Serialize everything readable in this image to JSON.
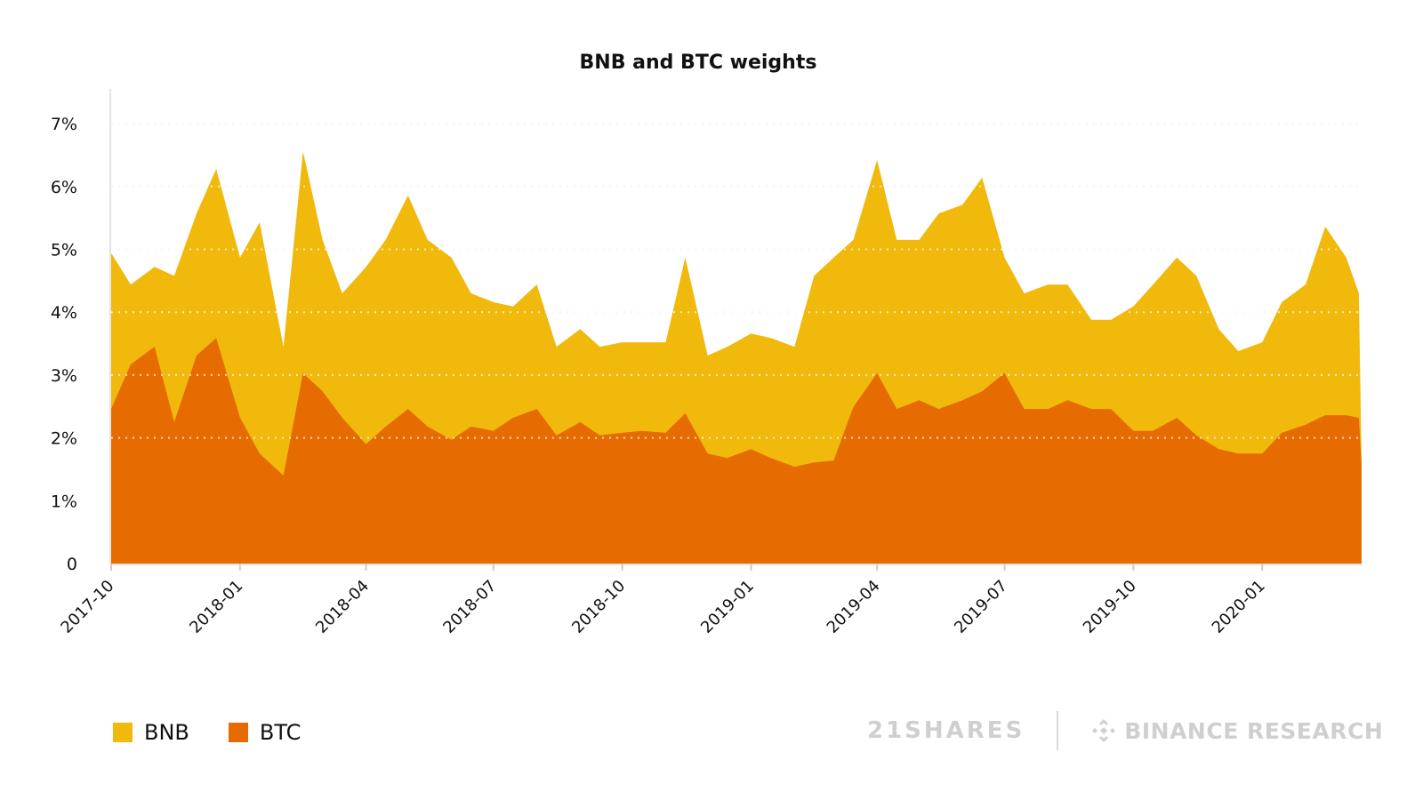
{
  "chart_data": {
    "type": "area",
    "title": "BNB and BTC weights",
    "xlabel": "",
    "ylabel": "",
    "ylim": [
      0,
      7.5
    ],
    "xlim": [
      "2017-10-01",
      "2020-03-12"
    ],
    "y_ticks": [
      0,
      1,
      2,
      3,
      4,
      5,
      6,
      7
    ],
    "y_tick_labels": [
      "0",
      "1%",
      "2%",
      "3%",
      "4%",
      "5%",
      "6%",
      "7%"
    ],
    "x_tick_labels": [
      "2017-10",
      "2018-01",
      "2018-04",
      "2018-07",
      "2018-10",
      "2019-01",
      "2019-04",
      "2019-07",
      "2019-10",
      "2020-01"
    ],
    "grid": "horizontal dotted",
    "legend_position": "bottom-left",
    "dates": [
      "2017-10-01",
      "2017-10-15",
      "2017-11-01",
      "2017-11-15",
      "2017-12-01",
      "2017-12-15",
      "2018-01-01",
      "2018-01-15",
      "2018-02-01",
      "2018-02-15",
      "2018-03-01",
      "2018-03-15",
      "2018-04-01",
      "2018-04-15",
      "2018-05-01",
      "2018-05-15",
      "2018-06-01",
      "2018-06-15",
      "2018-07-01",
      "2018-07-15",
      "2018-08-01",
      "2018-08-15",
      "2018-09-01",
      "2018-09-15",
      "2018-10-01",
      "2018-10-15",
      "2018-11-01",
      "2018-11-15",
      "2018-12-01",
      "2018-12-15",
      "2019-01-01",
      "2019-01-15",
      "2019-02-01",
      "2019-02-15",
      "2019-03-01",
      "2019-03-15",
      "2019-04-01",
      "2019-04-15",
      "2019-05-01",
      "2019-05-15",
      "2019-06-01",
      "2019-06-15",
      "2019-07-01",
      "2019-07-15",
      "2019-08-01",
      "2019-08-15",
      "2019-09-01",
      "2019-09-15",
      "2019-10-01",
      "2019-10-15",
      "2019-11-01",
      "2019-11-15",
      "2019-12-01",
      "2019-12-15",
      "2020-01-01",
      "2020-01-15",
      "2020-02-01",
      "2020-02-15",
      "2020-03-01",
      "2020-03-10",
      "2020-03-12"
    ],
    "series": [
      {
        "name": "BNB",
        "color": "#F0B90B",
        "values": [
          4.94,
          4.44,
          4.72,
          4.58,
          5.57,
          6.28,
          4.87,
          5.43,
          3.45,
          6.56,
          5.15,
          4.3,
          4.72,
          5.15,
          5.86,
          5.15,
          4.87,
          4.3,
          4.16,
          4.09,
          4.44,
          3.45,
          3.73,
          3.45,
          3.52,
          3.52,
          3.52,
          4.87,
          3.31,
          3.45,
          3.66,
          3.59,
          3.45,
          4.58,
          4.87,
          5.15,
          6.42,
          5.15,
          5.15,
          5.57,
          5.71,
          6.14,
          4.87,
          4.3,
          4.44,
          4.44,
          3.88,
          3.88,
          4.09,
          4.44,
          4.87,
          4.58,
          3.73,
          3.38,
          3.52,
          4.16,
          4.44,
          5.36,
          4.87,
          4.3,
          1.55
        ]
      },
      {
        "name": "BTC",
        "color": "#E66B00",
        "values": [
          2.46,
          3.17,
          3.45,
          2.25,
          3.31,
          3.59,
          2.32,
          1.75,
          1.4,
          3.03,
          2.74,
          2.32,
          1.9,
          2.18,
          2.46,
          2.18,
          1.97,
          2.18,
          2.11,
          2.32,
          2.46,
          2.04,
          2.25,
          2.04,
          2.08,
          2.11,
          2.08,
          2.39,
          1.75,
          1.68,
          1.82,
          1.68,
          1.54,
          1.61,
          1.64,
          2.49,
          3.03,
          2.46,
          2.6,
          2.46,
          2.6,
          2.74,
          3.03,
          2.46,
          2.46,
          2.6,
          2.46,
          2.46,
          2.11,
          2.11,
          2.32,
          2.04,
          1.82,
          1.75,
          1.75,
          2.08,
          2.21,
          2.36,
          2.36,
          2.32,
          1.55
        ]
      }
    ]
  },
  "logos": {
    "left": "21SHARES",
    "right": "BINANCE RESEARCH"
  }
}
